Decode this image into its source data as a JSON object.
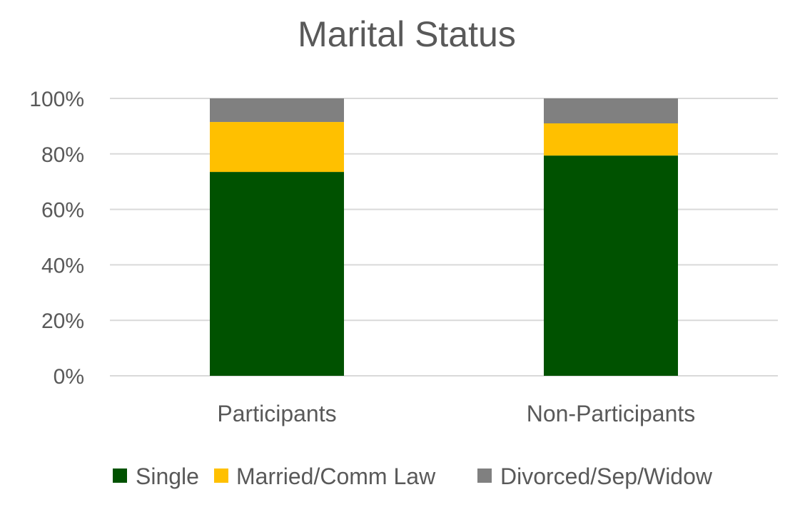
{
  "chart_data": {
    "type": "bar",
    "stacked": true,
    "title": "Marital Status",
    "xlabel": "",
    "ylabel": "",
    "categories": [
      "Participants",
      "Non-Participants"
    ],
    "series": [
      {
        "name": "Single",
        "color": "#005200",
        "values": [
          0.735,
          0.794
        ]
      },
      {
        "name": "Married/Comm Law",
        "color": "#FFC000",
        "values": [
          0.18,
          0.116
        ]
      },
      {
        "name": "Divorced/Sep/Widow",
        "color": "#808080",
        "values": [
          0.085,
          0.09
        ]
      }
    ],
    "ylim": [
      0,
      1
    ],
    "yticks": [
      0,
      0.2,
      0.4,
      0.6,
      0.8,
      1.0
    ],
    "ytick_labels": [
      "0%",
      "20%",
      "40%",
      "60%",
      "80%",
      "100%"
    ],
    "grid": true,
    "legend_position": "bottom",
    "colors": {
      "text": "#595959",
      "grid": "#D9D9D9",
      "background": "#FFFFFF"
    }
  }
}
